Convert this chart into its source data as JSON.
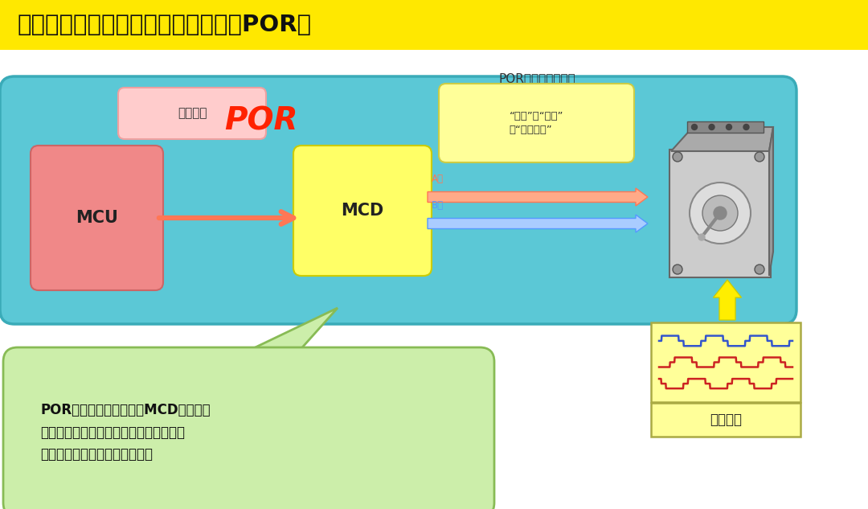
{
  "title": "用于安全驱动电机的电源监控功能（POR）",
  "title_bg": "#FFE800",
  "title_color": "#111111",
  "bg_color": "#FFFFFF",
  "main_box_color": "#5BC8D6",
  "main_box_edge": "#3AABB8",
  "mcu_box_color": "#F08888",
  "mcu_box_edge": "#CC6666",
  "mcu_label": "MCU",
  "op_box_color": "#FFCCCC",
  "op_box_edge": "#EEA0A0",
  "op_label": "操作信号",
  "por_label": "POR",
  "por_color": "#FF2200",
  "mcd_box_color": "#FFFF66",
  "mcd_box_edge": "#CCCC00",
  "mcd_label": "MCD",
  "dir_box_color": "#FFFF99",
  "dir_box_edge": "#CCCC44",
  "dir_label": "“方向”、“大小”\n和“电流合成”",
  "phase_a_label": "A相",
  "phase_b_label": "B相",
  "arrow_main_color": "#FF7755",
  "arrow_a_color": "#FF7755",
  "arrow_b_color": "#5599FF",
  "motor_current_box_color": "#FFFF99",
  "motor_current_box_edge": "#AAAA44",
  "motor_current_label": "电机电流",
  "por_circuit_label": "POR电路：上电复位",
  "callout_color": "#CCEEAA",
  "callout_edge": "#88BB55",
  "callout_text": "POR将监控电机驱动器和MCD驱动器的\n电源。为防止电机操作故障，它将强制关\n闭输出信号直至电流保持稳定。",
  "callout_text_color": "#111111"
}
